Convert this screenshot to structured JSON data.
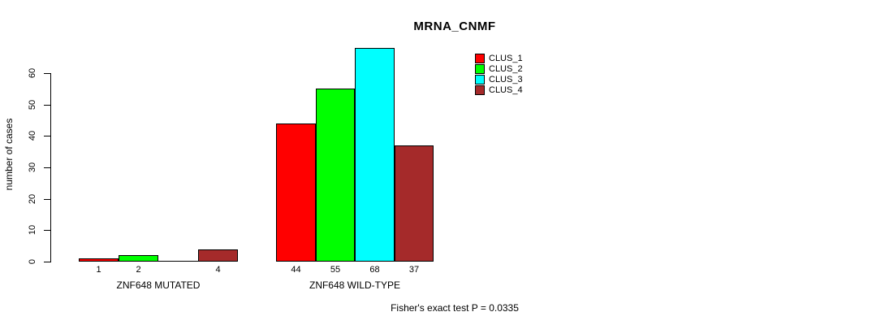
{
  "figure": {
    "title": "MRNA_CNMF",
    "footer": "Fisher's exact test P = 0.0335"
  },
  "chart_data": {
    "type": "bar",
    "title": "MRNA_CNMF",
    "xlabel": "",
    "ylabel": "number of cases",
    "ylim": [
      0,
      68
    ],
    "yticks": [
      0,
      10,
      20,
      30,
      40,
      50,
      60
    ],
    "grid": false,
    "legend_position": "top-right",
    "categories": [
      "ZNF648 MUTATED",
      "ZNF648 WILD-TYPE"
    ],
    "series": [
      {
        "name": "CLUS_1",
        "color": "#FF0000",
        "values": [
          1,
          44
        ]
      },
      {
        "name": "CLUS_2",
        "color": "#00FF00",
        "values": [
          2,
          55
        ]
      },
      {
        "name": "CLUS_3",
        "color": "#00FFFF",
        "values": [
          0,
          68
        ]
      },
      {
        "name": "CLUS_4",
        "color": "#A52A2A",
        "values": [
          4,
          37
        ]
      }
    ],
    "bar_value_labels": [
      [
        "1",
        "2",
        "",
        "4"
      ],
      [
        "44",
        "55",
        "68",
        "37"
      ]
    ],
    "annotation": "Fisher's exact test P = 0.0335"
  }
}
